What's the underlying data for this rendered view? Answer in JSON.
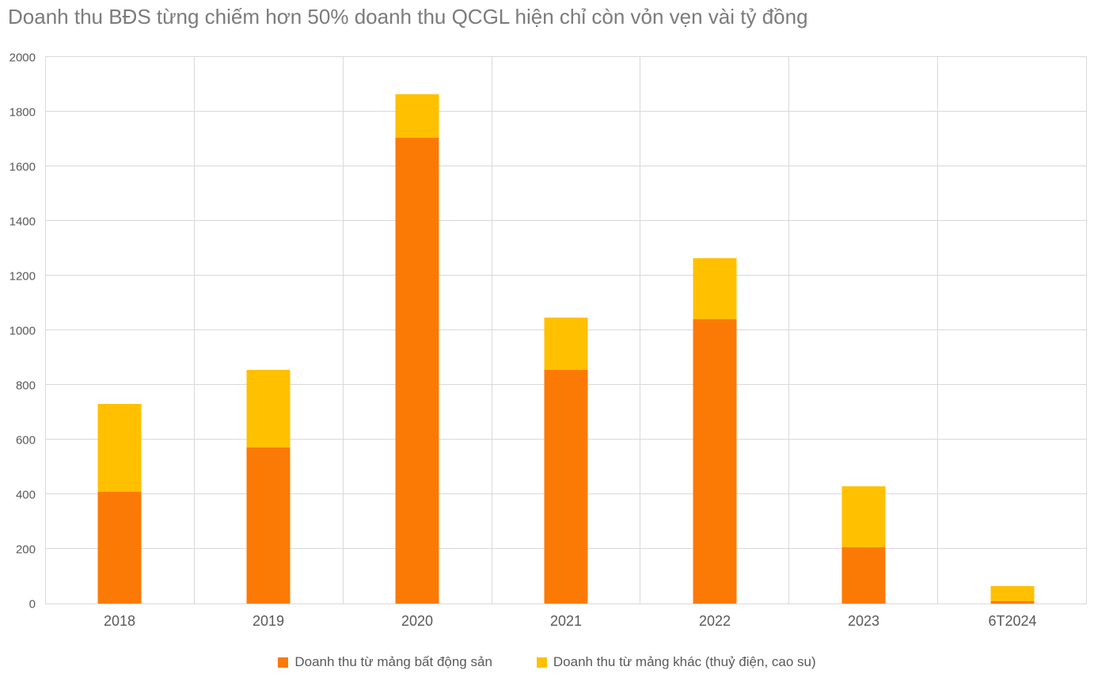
{
  "title": "Doanh thu BĐS từng chiếm hơn 50% doanh thu QCGL hiện chỉ còn vỏn vẹn vài tỷ đồng",
  "colors": {
    "real_estate": "#fb7a05",
    "other": "#ffc000",
    "title_text": "#7b7b7b",
    "axis_text": "#595959",
    "gridline": "#d9d9d9"
  },
  "chart_data": {
    "type": "bar",
    "stacked": true,
    "title": "Doanh thu BĐS từng chiếm hơn 50% doanh thu QCGL hiện chỉ còn vỏn vẹn vài tỷ đồng",
    "categories": [
      "2018",
      "2019",
      "2020",
      "2021",
      "2022",
      "2023",
      "6T2024"
    ],
    "series": [
      {
        "name": "Doanh thu từ mảng bất động sản",
        "color": "#fb7a05",
        "values": [
          410,
          570,
          1705,
          855,
          1040,
          205,
          8
        ]
      },
      {
        "name": "Doanh thu từ mảng khác (thuỷ điện, cao su)",
        "color": "#ffc000",
        "values": [
          320,
          285,
          160,
          190,
          225,
          225,
          55
        ]
      }
    ],
    "totals": [
      730,
      855,
      1865,
      1045,
      1265,
      430,
      63
    ],
    "xlabel": "",
    "ylabel": "",
    "ylim": [
      0,
      2000
    ],
    "yticks": [
      0,
      200,
      400,
      600,
      800,
      1000,
      1200,
      1400,
      1600,
      1800,
      2000
    ],
    "grid": true,
    "vertical_grid": true,
    "legend_position": "bottom"
  }
}
